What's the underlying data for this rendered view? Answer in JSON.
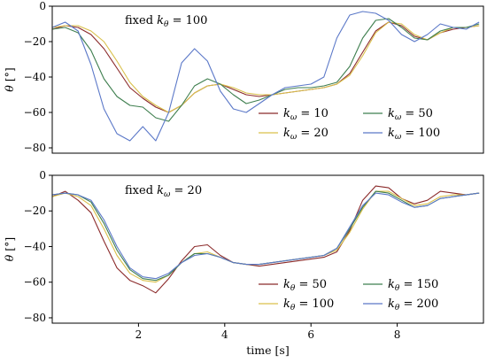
{
  "chart_data": [
    {
      "type": "line",
      "annotation": "fixed kθ = 100",
      "annotation_parts": {
        "prefix": "fixed ",
        "symbol": "k",
        "sub": "θ",
        "suffix": " = 100"
      },
      "xlabel": "",
      "ylabel": "θ [°]",
      "xlim": [
        0,
        10
      ],
      "ylim": [
        -83,
        0
      ],
      "xticks": [],
      "yticks": [
        0,
        -20,
        -40,
        -60,
        -80
      ],
      "legend_position": "lower-right",
      "legend_columns": 2,
      "series": [
        {
          "name": "kω = 10",
          "symbol": "k",
          "sub": "ω",
          "value_text": " = 10",
          "color": "#8b2a2a",
          "x": [
            0,
            0.3,
            0.6,
            0.9,
            1.2,
            1.5,
            1.8,
            2.1,
            2.4,
            2.7,
            3.0,
            3.3,
            3.6,
            3.9,
            4.2,
            4.5,
            4.8,
            5.1,
            5.4,
            5.7,
            6.0,
            6.3,
            6.6,
            6.9,
            7.2,
            7.5,
            7.8,
            8.1,
            8.4,
            8.7,
            9.0,
            9.3,
            9.6,
            9.9
          ],
          "y": [
            -13,
            -11,
            -12,
            -16,
            -24,
            -35,
            -46,
            -52,
            -57,
            -60,
            -56,
            -49,
            -45,
            -44,
            -47,
            -50,
            -51,
            -50,
            -49,
            -48,
            -47,
            -46,
            -44,
            -38,
            -26,
            -14,
            -9,
            -11,
            -17,
            -19,
            -15,
            -13,
            -12,
            -11
          ]
        },
        {
          "name": "kω = 20",
          "symbol": "k",
          "sub": "ω",
          "value_text": " = 20",
          "color": "#d9c04a",
          "x": [
            0,
            0.3,
            0.6,
            0.9,
            1.2,
            1.5,
            1.8,
            2.1,
            2.4,
            2.7,
            3.0,
            3.3,
            3.6,
            3.9,
            4.2,
            4.5,
            4.8,
            5.1,
            5.4,
            5.7,
            6.0,
            6.3,
            6.6,
            6.9,
            7.2,
            7.5,
            7.8,
            8.1,
            8.4,
            8.7,
            9.0,
            9.3,
            9.6,
            9.9
          ],
          "y": [
            -12,
            -11,
            -11,
            -14,
            -20,
            -31,
            -43,
            -51,
            -56,
            -60,
            -56,
            -49,
            -45,
            -44,
            -46,
            -49,
            -50,
            -50,
            -49,
            -48,
            -47,
            -46,
            -44,
            -39,
            -28,
            -15,
            -9,
            -10,
            -16,
            -19,
            -15,
            -12,
            -12,
            -11
          ]
        },
        {
          "name": "kω = 50",
          "symbol": "k",
          "sub": "ω",
          "value_text": " = 50",
          "color": "#3f7f4f",
          "x": [
            0,
            0.3,
            0.6,
            0.9,
            1.2,
            1.5,
            1.8,
            2.1,
            2.4,
            2.7,
            3.0,
            3.3,
            3.6,
            3.9,
            4.2,
            4.5,
            4.8,
            5.1,
            5.4,
            5.7,
            6.0,
            6.3,
            6.6,
            6.9,
            7.2,
            7.5,
            7.8,
            8.1,
            8.4,
            8.7,
            9.0,
            9.3,
            9.6,
            9.9
          ],
          "y": [
            -13,
            -12,
            -15,
            -25,
            -41,
            -51,
            -56,
            -57,
            -63,
            -65,
            -56,
            -45,
            -41,
            -44,
            -50,
            -55,
            -53,
            -50,
            -47,
            -46,
            -46,
            -45,
            -43,
            -34,
            -18,
            -8,
            -7,
            -12,
            -18,
            -19,
            -14,
            -12,
            -12,
            -10
          ]
        },
        {
          "name": "kω = 100",
          "symbol": "k",
          "sub": "ω",
          "value_text": " = 100",
          "color": "#5b78c8",
          "x": [
            0,
            0.3,
            0.6,
            0.9,
            1.2,
            1.5,
            1.8,
            2.1,
            2.4,
            2.7,
            3.0,
            3.3,
            3.6,
            3.9,
            4.2,
            4.5,
            4.8,
            5.1,
            5.4,
            5.7,
            6.0,
            6.3,
            6.6,
            6.9,
            7.2,
            7.5,
            7.8,
            8.1,
            8.4,
            8.7,
            9.0,
            9.3,
            9.6,
            9.9
          ],
          "y": [
            -12,
            -9,
            -14,
            -33,
            -58,
            -72,
            -76,
            -68,
            -76,
            -60,
            -32,
            -24,
            -31,
            -48,
            -58,
            -60,
            -55,
            -50,
            -46,
            -45,
            -44,
            -40,
            -18,
            -5,
            -3,
            -4,
            -8,
            -16,
            -20,
            -16,
            -10,
            -12,
            -13,
            -9
          ]
        }
      ]
    },
    {
      "type": "line",
      "annotation": "fixed kω = 20",
      "annotation_parts": {
        "prefix": "fixed ",
        "symbol": "k",
        "sub": "ω",
        "suffix": " = 20"
      },
      "xlabel": "time [s]",
      "ylabel": "θ [°]",
      "xlim": [
        0,
        10
      ],
      "ylim": [
        -83,
        0
      ],
      "xticks": [
        2,
        4,
        6,
        8
      ],
      "yticks": [
        0,
        -20,
        -40,
        -60,
        -80
      ],
      "legend_position": "lower-right",
      "legend_columns": 2,
      "series": [
        {
          "name": "kθ = 50",
          "symbol": "k",
          "sub": "θ",
          "value_text": " = 50",
          "color": "#8b2a2a",
          "x": [
            0,
            0.3,
            0.6,
            0.9,
            1.2,
            1.5,
            1.8,
            2.1,
            2.4,
            2.7,
            3.0,
            3.3,
            3.6,
            3.9,
            4.2,
            4.5,
            4.8,
            5.1,
            5.4,
            5.7,
            6.0,
            6.3,
            6.6,
            6.9,
            7.2,
            7.5,
            7.8,
            8.1,
            8.4,
            8.7,
            9.0,
            9.3,
            9.6,
            9.9
          ],
          "y": [
            -12,
            -9,
            -14,
            -21,
            -37,
            -52,
            -59,
            -62,
            -66,
            -58,
            -48,
            -40,
            -39,
            -45,
            -49,
            -50,
            -51,
            -50,
            -49,
            -48,
            -47,
            -46,
            -43,
            -31,
            -14,
            -6,
            -7,
            -13,
            -16,
            -14,
            -9,
            -10,
            -11,
            -10
          ]
        },
        {
          "name": "kθ = 100",
          "symbol": "k",
          "sub": "θ",
          "value_text": " = 100",
          "color": "#d9c04a",
          "x": [
            0,
            0.3,
            0.6,
            0.9,
            1.2,
            1.5,
            1.8,
            2.1,
            2.4,
            2.7,
            3.0,
            3.3,
            3.6,
            3.9,
            4.2,
            4.5,
            4.8,
            5.1,
            5.4,
            5.7,
            6.0,
            6.3,
            6.6,
            6.9,
            7.2,
            7.5,
            7.8,
            8.1,
            8.4,
            8.7,
            9.0,
            9.3,
            9.6,
            9.9
          ],
          "y": [
            -12,
            -10,
            -12,
            -17,
            -30,
            -45,
            -55,
            -59,
            -60,
            -56,
            -49,
            -44,
            -43,
            -46,
            -49,
            -50,
            -50,
            -49,
            -48,
            -47,
            -46,
            -45,
            -42,
            -32,
            -19,
            -9,
            -9,
            -13,
            -17,
            -16,
            -12,
            -11,
            -11,
            -10
          ]
        },
        {
          "name": "kθ = 150",
          "symbol": "k",
          "sub": "θ",
          "value_text": " = 150",
          "color": "#3f7f4f",
          "x": [
            0,
            0.3,
            0.6,
            0.9,
            1.2,
            1.5,
            1.8,
            2.1,
            2.4,
            2.7,
            3.0,
            3.3,
            3.6,
            3.9,
            4.2,
            4.5,
            4.8,
            5.1,
            5.4,
            5.7,
            6.0,
            6.3,
            6.6,
            6.9,
            7.2,
            7.5,
            7.8,
            8.1,
            8.4,
            8.7,
            9.0,
            9.3,
            9.6,
            9.9
          ],
          "y": [
            -11,
            -10,
            -11,
            -15,
            -27,
            -42,
            -53,
            -58,
            -59,
            -56,
            -49,
            -44,
            -44,
            -46,
            -49,
            -50,
            -50,
            -49,
            -48,
            -47,
            -46,
            -45,
            -41,
            -30,
            -18,
            -9,
            -10,
            -14,
            -18,
            -17,
            -13,
            -12,
            -11,
            -10
          ]
        },
        {
          "name": "kθ = 200",
          "symbol": "k",
          "sub": "θ",
          "value_text": " = 200",
          "color": "#5b78c8",
          "x": [
            0,
            0.3,
            0.6,
            0.9,
            1.2,
            1.5,
            1.8,
            2.1,
            2.4,
            2.7,
            3.0,
            3.3,
            3.6,
            3.9,
            4.2,
            4.5,
            4.8,
            5.1,
            5.4,
            5.7,
            6.0,
            6.3,
            6.6,
            6.9,
            7.2,
            7.5,
            7.8,
            8.1,
            8.4,
            8.7,
            9.0,
            9.3,
            9.6,
            9.9
          ],
          "y": [
            -11,
            -10,
            -11,
            -14,
            -25,
            -40,
            -52,
            -57,
            -58,
            -55,
            -49,
            -45,
            -44,
            -46,
            -49,
            -50,
            -50,
            -49,
            -48,
            -47,
            -46,
            -45,
            -41,
            -29,
            -17,
            -10,
            -11,
            -15,
            -18,
            -17,
            -13,
            -12,
            -11,
            -10
          ]
        }
      ]
    }
  ]
}
